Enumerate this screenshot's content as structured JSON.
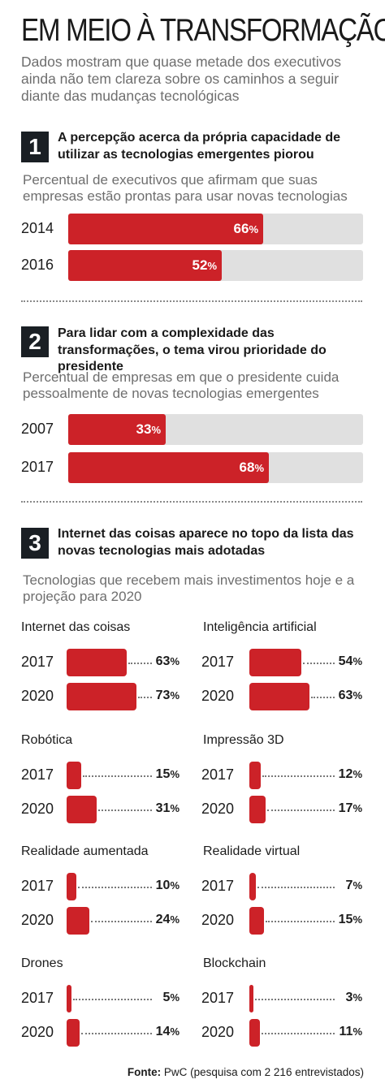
{
  "title": "EM MEIO À TRANSFORMAÇÃO",
  "subtitle": "Dados mostram que quase metade dos executivos ainda não tem clareza sobre os caminhos a seguir diante das mudanças tecnológicas",
  "colors": {
    "bar": "#cc2228",
    "track": "#e0e0e0",
    "badge": "#1a1f24"
  },
  "sections": [
    {
      "number": "1",
      "title": "A percepção acerca da própria capacidade de utilizar as tecnologias emergentes piorou",
      "description": "Percentual de executivos que afirmam que suas empresas estão prontas para usar novas tecnologias"
    },
    {
      "number": "2",
      "title": "Para lidar com a complexidade das transformações, o tema virou prioridade do presidente",
      "description": "Percentual de empresas em que o presidente cuida pessoalmente de novas tecnologias emergentes"
    },
    {
      "number": "3",
      "title": "Internet das coisas aparece no topo da lista das novas tecnologias mais adotadas",
      "description": "Tecnologias que recebem mais investimentos hoje e a projeção para 2020"
    }
  ],
  "chart_data": [
    {
      "type": "bar",
      "orientation": "horizontal",
      "unit": "%",
      "xlim": [
        0,
        100
      ],
      "categories": [
        "2014",
        "2016"
      ],
      "values": [
        66,
        52
      ]
    },
    {
      "type": "bar",
      "orientation": "horizontal",
      "unit": "%",
      "xlim": [
        0,
        100
      ],
      "categories": [
        "2007",
        "2017"
      ],
      "values": [
        33,
        68
      ]
    },
    {
      "type": "bar",
      "orientation": "horizontal",
      "unit": "%",
      "groups": [
        {
          "name": "Internet das coisas",
          "categories": [
            "2017",
            "2020"
          ],
          "values": [
            63,
            73
          ]
        },
        {
          "name": "Inteligência artificial",
          "categories": [
            "2017",
            "2020"
          ],
          "values": [
            54,
            63
          ]
        },
        {
          "name": "Robótica",
          "categories": [
            "2017",
            "2020"
          ],
          "values": [
            15,
            31
          ]
        },
        {
          "name": "Impressão 3D",
          "categories": [
            "2017",
            "2020"
          ],
          "values": [
            12,
            17
          ]
        },
        {
          "name": "Realidade aumentada",
          "categories": [
            "2017",
            "2020"
          ],
          "values": [
            10,
            24
          ]
        },
        {
          "name": "Realidade virtual",
          "categories": [
            "2017",
            "2020"
          ],
          "values": [
            7,
            15
          ]
        },
        {
          "name": "Drones",
          "categories": [
            "2017",
            "2020"
          ],
          "values": [
            5,
            14
          ]
        },
        {
          "name": "Blockchain",
          "categories": [
            "2017",
            "2020"
          ],
          "values": [
            3,
            11
          ]
        }
      ]
    }
  ],
  "source": {
    "label": "Fonte:",
    "text": "PwC (pesquisa com 2 216 entrevistados)"
  }
}
